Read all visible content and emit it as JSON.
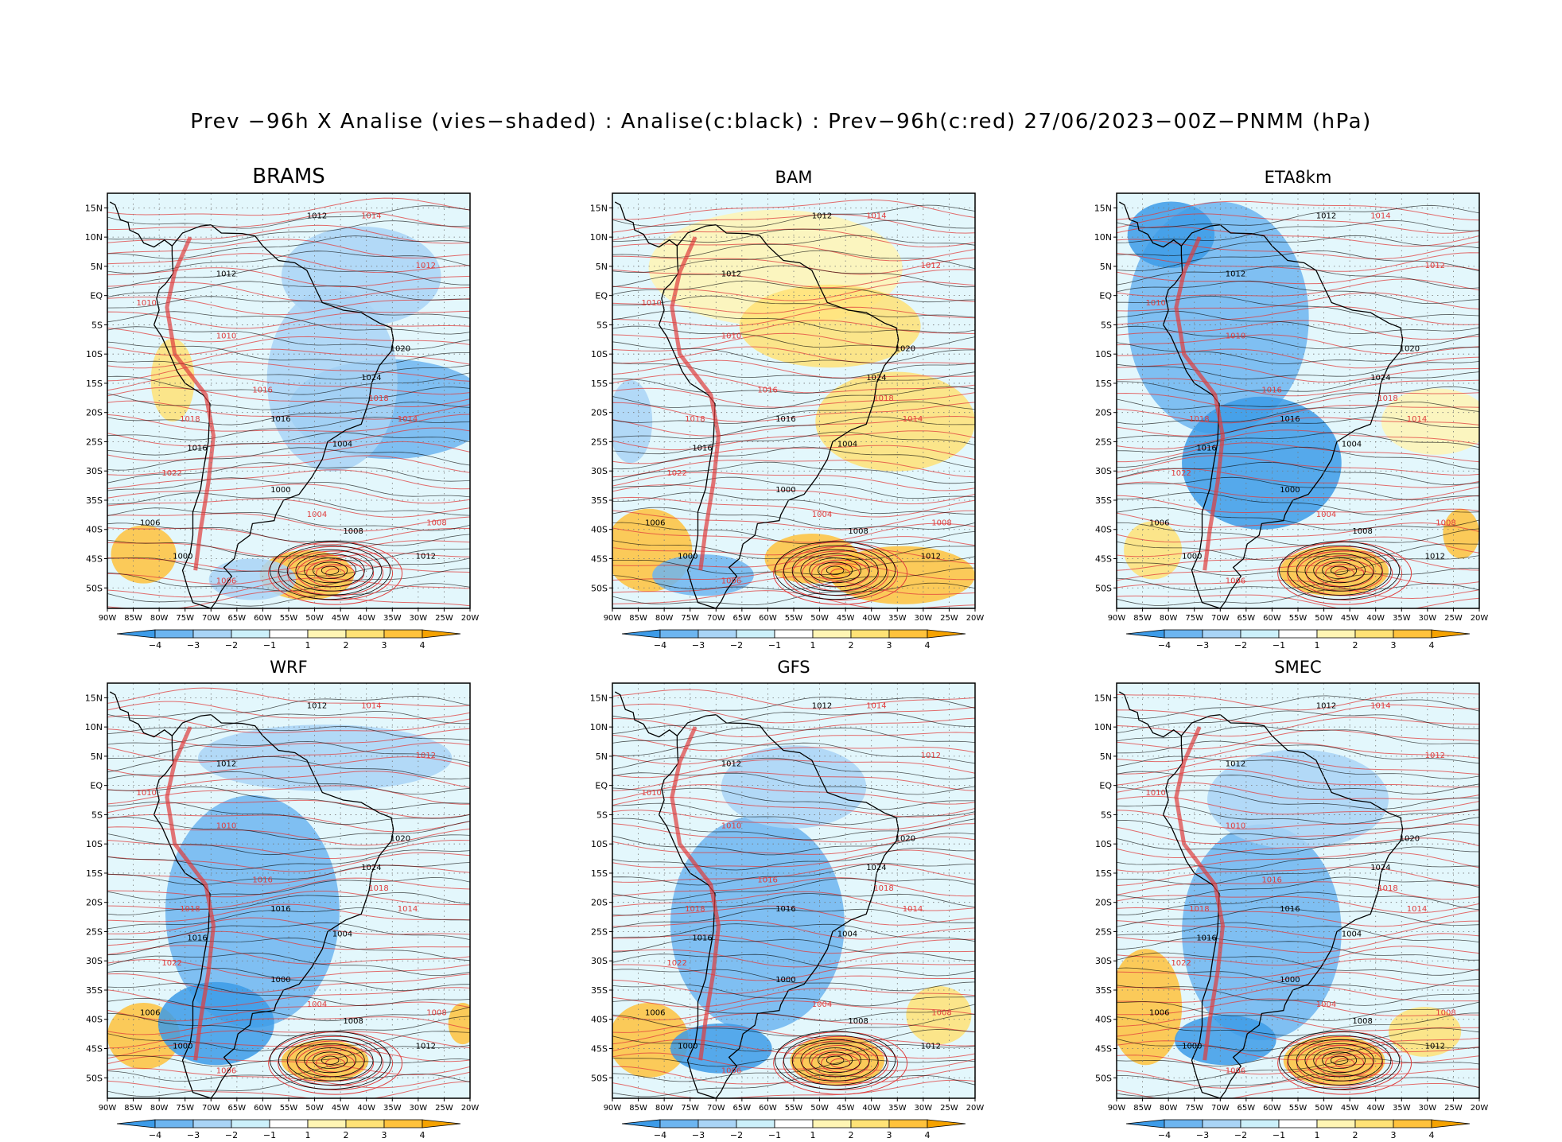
{
  "title": "Prev −96h X Analise (vies−shaded) : Analise(c:black) : Prev−96h(c:red) 27/06/2023−00Z−PNMM (hPa)",
  "panels": [
    {
      "name": "BRAMS"
    },
    {
      "name": "BAM"
    },
    {
      "name": "ETA8km"
    },
    {
      "name": "WRF"
    },
    {
      "name": "GFS"
    },
    {
      "name": "SMEC"
    }
  ],
  "lat_ticks": [
    "15N",
    "10N",
    "5N",
    "EQ",
    "5S",
    "10S",
    "15S",
    "20S",
    "25S",
    "30S",
    "35S",
    "40S",
    "45S",
    "50S"
  ],
  "lon_ticks": [
    "90W",
    "85W",
    "80W",
    "75W",
    "70W",
    "65W",
    "60W",
    "55W",
    "50W",
    "45W",
    "40W",
    "35W",
    "30W",
    "25W",
    "20W"
  ],
  "colorbar": {
    "labels": [
      "−4",
      "−3",
      "−2",
      "−1",
      "1",
      "2",
      "3",
      "4"
    ],
    "colors": [
      "#3c9be8",
      "#6db5f0",
      "#a9d4f6",
      "#ccf0fa",
      "#ffffff",
      "#fff5b4",
      "#ffe276",
      "#ffc23c",
      "#f5a200"
    ]
  },
  "colors": {
    "analysis_contour": "#000000",
    "forecast_contour": "#e03c3c"
  }
}
